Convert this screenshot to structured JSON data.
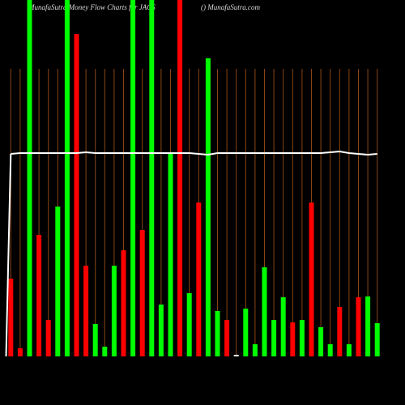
{
  "chart_data": {
    "type": "bar",
    "title": "MunafaSutra  Money Flow  Charts for JACS",
    "subtitle": "() MunafaSutra.com",
    "values": [
      96,
      10,
      440,
      150,
      45,
      185,
      440,
      398,
      112,
      40,
      12,
      112,
      131,
      440,
      156,
      440,
      64,
      250,
      440,
      78,
      190,
      368,
      56,
      45,
      2,
      59,
      15,
      110,
      45,
      73,
      42,
      45,
      190,
      36,
      15,
      61,
      15,
      73,
      74,
      41
    ],
    "colors": [
      "#ff0000",
      "#ff0000",
      "#00ff00",
      "#ff0000",
      "#ff0000",
      "#00ff00",
      "#00ff00",
      "#ff0000",
      "#ff0000",
      "#00ff00",
      "#00ff00",
      "#00ff00",
      "#ff0000",
      "#00ff00",
      "#ff0000",
      "#00ff00",
      "#00ff00",
      "#00ff00",
      "#ff0000",
      "#00ff00",
      "#ff0000",
      "#00ff00",
      "#00ff00",
      "#ff0000",
      "#ffffff",
      "#00ff00",
      "#00ff00",
      "#00ff00",
      "#00ff00",
      "#00ff00",
      "#ff0000",
      "#00ff00",
      "#ff0000",
      "#00ff00",
      "#00ff00",
      "#ff0000",
      "#00ff00",
      "#ff0000",
      "#00ff00",
      "#00ff00"
    ],
    "line": {
      "color": "#ffffff",
      "values": [
        250,
        251,
        251,
        251,
        251,
        251,
        251,
        251,
        252,
        251,
        251,
        251,
        251,
        251,
        251,
        251,
        251,
        251,
        251,
        251,
        250,
        249,
        251,
        251,
        251,
        251,
        251,
        251,
        251,
        251,
        251,
        251,
        251,
        251,
        252,
        253,
        251,
        250,
        249,
        250
      ]
    },
    "grid_color": "#8b4513"
  }
}
